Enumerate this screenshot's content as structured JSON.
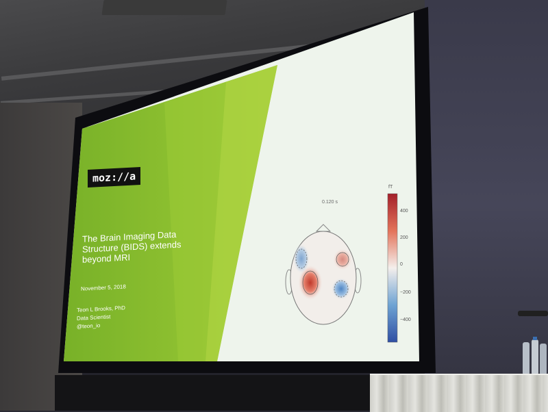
{
  "slide": {
    "logo_text": "moz://a",
    "title": "The Brain Imaging Data Structure (BIDS) extends beyond MRI",
    "date": "November 5, 2018",
    "author_name": "Teon L Brooks, PhD",
    "author_role": "Data Scientist",
    "author_handle": "@teon_io"
  },
  "topomap": {
    "time_label": "0.120 s",
    "colorbar_unit": "fT",
    "colorbar_ticks": [
      "400",
      "200",
      "0",
      "−200",
      "−400"
    ],
    "colors": {
      "positive": "#c0392b",
      "negative": "#2f6fb5",
      "neutral": "#f2eeea"
    }
  },
  "colors": {
    "slide_green": "#8cbf2a",
    "slide_light": "#eef4ec",
    "screen_border": "#0c0c10"
  }
}
